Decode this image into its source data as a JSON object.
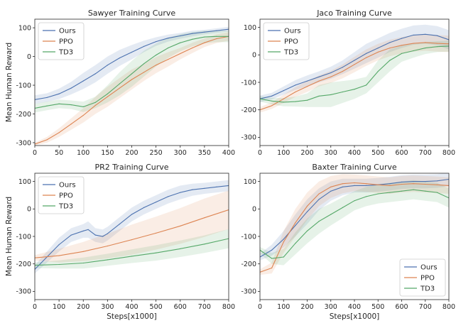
{
  "colors": {
    "Ours": "#4c72b0",
    "PPO": "#dd8452",
    "TD3": "#55a868"
  },
  "chart_data": [
    {
      "type": "line",
      "title": "Sawyer Training Curve",
      "xlabel": "",
      "ylabel": "Mean Human Reward",
      "xlim": [
        0,
        400
      ],
      "ylim": [
        -310,
        130
      ],
      "xticks": [
        0,
        50,
        100,
        150,
        200,
        250,
        300,
        350,
        400
      ],
      "yticks": [
        -300,
        -200,
        -100,
        0,
        100
      ],
      "legend": "top-left",
      "grid": false,
      "series": [
        {
          "name": "Ours",
          "x": [
            0,
            25,
            50,
            75,
            100,
            125,
            150,
            175,
            200,
            225,
            250,
            275,
            300,
            325,
            350,
            375,
            400
          ],
          "y": [
            -150,
            -143,
            -130,
            -110,
            -85,
            -60,
            -30,
            -5,
            15,
            35,
            52,
            64,
            72,
            80,
            85,
            90,
            95
          ],
          "band": [
            15,
            15,
            18,
            22,
            28,
            30,
            30,
            28,
            25,
            20,
            15,
            12,
            10,
            10,
            8,
            8,
            8
          ]
        },
        {
          "name": "PPO",
          "x": [
            0,
            25,
            50,
            75,
            100,
            125,
            150,
            175,
            200,
            225,
            250,
            275,
            300,
            325,
            350,
            375,
            400
          ],
          "y": [
            -305,
            -290,
            -265,
            -235,
            -205,
            -170,
            -140,
            -110,
            -80,
            -55,
            -30,
            -10,
            10,
            30,
            48,
            62,
            70
          ],
          "band": [
            5,
            10,
            15,
            20,
            25,
            30,
            35,
            35,
            35,
            30,
            28,
            25,
            20,
            18,
            15,
            15,
            15
          ]
        },
        {
          "name": "TD3",
          "x": [
            0,
            25,
            50,
            75,
            100,
            125,
            150,
            175,
            200,
            225,
            250,
            275,
            300,
            325,
            350,
            375,
            400
          ],
          "y": [
            -180,
            -172,
            -165,
            -168,
            -175,
            -160,
            -130,
            -95,
            -60,
            -25,
            5,
            30,
            48,
            60,
            68,
            70,
            70
          ],
          "band": [
            15,
            15,
            15,
            15,
            18,
            20,
            30,
            40,
            45,
            45,
            40,
            35,
            30,
            25,
            22,
            20,
            20
          ]
        }
      ]
    },
    {
      "type": "line",
      "title": "Jaco Training Curve",
      "xlabel": "",
      "ylabel": "",
      "xlim": [
        0,
        800
      ],
      "ylim": [
        -330,
        130
      ],
      "xticks": [
        0,
        100,
        200,
        300,
        400,
        500,
        600,
        700,
        800
      ],
      "yticks": [
        -300,
        -200,
        -100,
        0,
        100
      ],
      "legend": "top-left",
      "grid": false,
      "series": [
        {
          "name": "Ours",
          "x": [
            0,
            50,
            100,
            150,
            200,
            250,
            300,
            350,
            400,
            450,
            500,
            550,
            600,
            650,
            700,
            750,
            800
          ],
          "y": [
            -160,
            -150,
            -130,
            -110,
            -95,
            -80,
            -65,
            -45,
            -20,
            5,
            25,
            45,
            60,
            72,
            75,
            70,
            55
          ],
          "band": [
            12,
            12,
            15,
            18,
            20,
            20,
            22,
            25,
            30,
            35,
            35,
            35,
            35,
            35,
            35,
            35,
            35
          ]
        },
        {
          "name": "PPO",
          "x": [
            0,
            50,
            100,
            150,
            200,
            250,
            300,
            350,
            400,
            450,
            500,
            550,
            600,
            650,
            700,
            750,
            800
          ],
          "y": [
            -200,
            -185,
            -160,
            -135,
            -115,
            -95,
            -80,
            -60,
            -35,
            -10,
            10,
            25,
            35,
            42,
            45,
            42,
            40
          ],
          "band": [
            10,
            12,
            15,
            18,
            20,
            20,
            22,
            25,
            28,
            30,
            30,
            30,
            30,
            30,
            30,
            30,
            30
          ]
        },
        {
          "name": "TD3",
          "x": [
            0,
            50,
            100,
            150,
            200,
            250,
            300,
            350,
            400,
            450,
            500,
            550,
            600,
            650,
            700,
            750,
            800
          ],
          "y": [
            -160,
            -168,
            -172,
            -170,
            -165,
            -150,
            -145,
            -135,
            -125,
            -110,
            -60,
            -20,
            5,
            15,
            25,
            30,
            32
          ],
          "band": [
            10,
            12,
            15,
            18,
            25,
            40,
            45,
            40,
            35,
            30,
            40,
            40,
            30,
            25,
            22,
            20,
            20
          ]
        }
      ]
    },
    {
      "type": "line",
      "title": "PR2 Training Curve",
      "xlabel": "Steps[x1000]",
      "ylabel": "Mean Human Reward",
      "xlim": [
        0,
        800
      ],
      "ylim": [
        -330,
        130
      ],
      "xticks": [
        0,
        100,
        200,
        300,
        400,
        500,
        600,
        700,
        800
      ],
      "yticks": [
        -300,
        -200,
        -100,
        0,
        100
      ],
      "legend": "top-left",
      "grid": false,
      "series": [
        {
          "name": "Ours",
          "x": [
            0,
            50,
            100,
            150,
            200,
            220,
            250,
            280,
            300,
            350,
            400,
            450,
            500,
            550,
            600,
            650,
            700,
            750,
            800
          ],
          "y": [
            -220,
            -175,
            -130,
            -95,
            -80,
            -75,
            -95,
            -100,
            -90,
            -55,
            -20,
            5,
            25,
            45,
            60,
            70,
            75,
            80,
            85
          ],
          "band": [
            15,
            20,
            25,
            25,
            25,
            30,
            25,
            25,
            25,
            25,
            25,
            25,
            25,
            25,
            25,
            22,
            20,
            20,
            20
          ]
        },
        {
          "name": "PPO",
          "x": [
            0,
            100,
            200,
            300,
            400,
            500,
            600,
            700,
            800
          ],
          "y": [
            -178,
            -170,
            -155,
            -135,
            -112,
            -88,
            -62,
            -32,
            -3
          ],
          "band": [
            10,
            25,
            35,
            45,
            55,
            60,
            65,
            70,
            70
          ]
        },
        {
          "name": "TD3",
          "x": [
            0,
            100,
            200,
            300,
            400,
            500,
            600,
            700,
            800
          ],
          "y": [
            -205,
            -202,
            -197,
            -185,
            -172,
            -160,
            -145,
            -128,
            -108
          ],
          "band": [
            10,
            15,
            20,
            22,
            25,
            28,
            30,
            32,
            35
          ]
        }
      ]
    },
    {
      "type": "line",
      "title": "Baxter Training Curve",
      "xlabel": "Steps[x1000]",
      "ylabel": "",
      "xlim": [
        0,
        800
      ],
      "ylim": [
        -330,
        130
      ],
      "xticks": [
        0,
        100,
        200,
        300,
        400,
        500,
        600,
        700,
        800
      ],
      "yticks": [
        -300,
        -200,
        -100,
        0,
        100
      ],
      "legend": "bottom-right",
      "grid": false,
      "series": [
        {
          "name": "Ours",
          "x": [
            0,
            50,
            100,
            150,
            200,
            250,
            300,
            350,
            400,
            450,
            500,
            550,
            600,
            650,
            700,
            750,
            800
          ],
          "y": [
            -175,
            -150,
            -110,
            -60,
            -10,
            35,
            65,
            80,
            85,
            85,
            88,
            92,
            98,
            100,
            100,
            102,
            108
          ],
          "band": [
            12,
            20,
            30,
            40,
            45,
            40,
            35,
            30,
            25,
            25,
            25,
            25,
            25,
            25,
            25,
            25,
            25
          ]
        },
        {
          "name": "PPO",
          "x": [
            0,
            50,
            100,
            150,
            200,
            250,
            300,
            350,
            400,
            450,
            500,
            550,
            600,
            650,
            700,
            750,
            800
          ],
          "y": [
            -230,
            -215,
            -120,
            -50,
            10,
            55,
            80,
            92,
            95,
            92,
            88,
            85,
            90,
            92,
            90,
            88,
            85
          ],
          "band": [
            10,
            20,
            40,
            50,
            50,
            45,
            40,
            35,
            30,
            30,
            30,
            30,
            30,
            30,
            30,
            30,
            30
          ]
        },
        {
          "name": "TD3",
          "x": [
            0,
            50,
            100,
            150,
            200,
            250,
            300,
            350,
            400,
            450,
            500,
            550,
            600,
            650,
            700,
            750,
            800
          ],
          "y": [
            -150,
            -180,
            -175,
            -125,
            -80,
            -45,
            -20,
            5,
            30,
            45,
            55,
            60,
            65,
            70,
            65,
            60,
            40
          ],
          "band": [
            12,
            20,
            30,
            40,
            45,
            45,
            40,
            38,
            35,
            35,
            35,
            35,
            35,
            35,
            35,
            35,
            35
          ]
        }
      ]
    }
  ]
}
